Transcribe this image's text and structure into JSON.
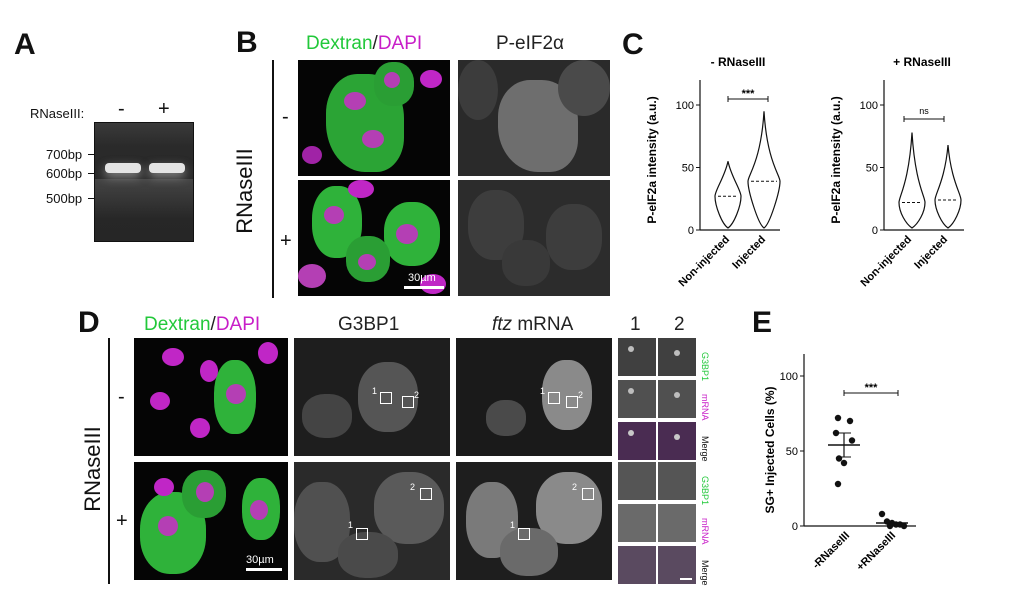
{
  "panels": {
    "A": "A",
    "B": "B",
    "C": "C",
    "D": "D",
    "E": "E"
  },
  "gel": {
    "condition_label": "RNaseIII:",
    "lane_minus": "-",
    "lane_plus": "+",
    "markers": [
      "700bp",
      "600bp",
      "500bp"
    ]
  },
  "panelB": {
    "col1_green": "Dextran",
    "col1_slash": "/",
    "col1_magenta": "DAPI",
    "col2": "P-eIF2α",
    "row_title": "RNaseIII",
    "row_minus": "-",
    "row_plus": "+",
    "scale": "30µm"
  },
  "panelD": {
    "col1_green": "Dextran",
    "col1_slash": "/",
    "col1_magenta": "DAPI",
    "col2": "G3BP1",
    "col3_italic": "ftz",
    "col3_rest": " mRNA",
    "col4": "1",
    "col5": "2",
    "row_title": "RNaseIII",
    "row_minus": "-",
    "row_plus": "+",
    "scale": "30µm",
    "inset_labels": [
      "G3BP1",
      "mRNA",
      "Merge",
      "G3BP1",
      "mRNA",
      "Merge"
    ],
    "box_labels": [
      "1",
      "2"
    ]
  },
  "chart_data": [
    {
      "type": "violin",
      "title": "- RNaseIII",
      "ylabel": "P-eIF2a intensity (a.u.)",
      "categories": [
        "Non-injected",
        "Injected"
      ],
      "yticks": [
        0,
        50,
        100
      ],
      "ylim": [
        0,
        120
      ],
      "medians": [
        27,
        39
      ],
      "significance": "***"
    },
    {
      "type": "violin",
      "title": "+ RNaseIII",
      "ylabel": "P-eIF2a intensity (a.u.)",
      "categories": [
        "Non-injected",
        "Injected"
      ],
      "yticks": [
        0,
        50,
        100
      ],
      "ylim": [
        0,
        120
      ],
      "medians": [
        22,
        24
      ],
      "significance": "ns"
    },
    {
      "type": "scatter",
      "ylabel": "SG+ Injected Cells (%)",
      "categories": [
        "-RNaseIII",
        "+RNaseIII"
      ],
      "yticks": [
        0,
        50,
        100
      ],
      "ylim": [
        0,
        100
      ],
      "points": [
        [
          72,
          70,
          62,
          57,
          45,
          42,
          28
        ],
        [
          8,
          3,
          2,
          1,
          1,
          0,
          0
        ]
      ],
      "means": [
        54,
        2
      ],
      "significance": "***"
    }
  ]
}
